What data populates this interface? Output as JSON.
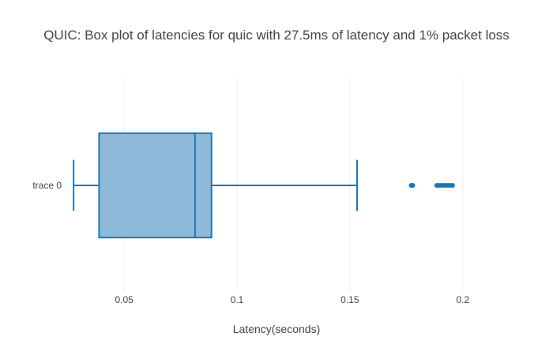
{
  "chart_data": {
    "type": "box",
    "title": "QUIC: Box plot of latencies for quic with 27.5ms of latency and 1% packet loss",
    "xlabel": "Latency(seconds)",
    "ylabel": "",
    "orientation": "horizontal",
    "xlim": [
      0.023,
      0.212
    ],
    "xticks": [
      0.05,
      0.1,
      0.15,
      0.2
    ],
    "xtick_labels": [
      "0.05",
      "0.1",
      "0.15",
      "0.2"
    ],
    "grid": true,
    "series": [
      {
        "name": "trace 0",
        "min": 0.0276,
        "q1": 0.0389,
        "median": 0.0814,
        "q3": 0.0887,
        "max": 0.1532,
        "outliers": [
          0.1772,
          0.1779,
          0.1885,
          0.1895,
          0.1905,
          0.1915,
          0.1925,
          0.1935,
          0.1945,
          0.1955
        ]
      }
    ],
    "colors": {
      "box_fill": "#8fb9d9",
      "box_line": "#1f77b4"
    }
  }
}
